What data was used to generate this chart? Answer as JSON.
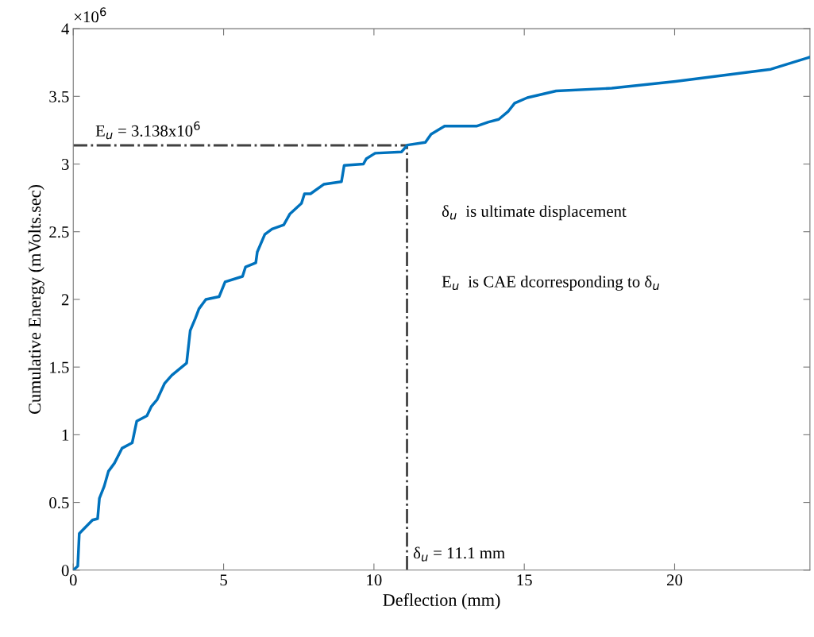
{
  "chart_data": {
    "type": "line",
    "xlabel": "Deflection (mm)",
    "ylabel": "Cumulative Energy (mVolts.sec)",
    "xlim": [
      0,
      24.5
    ],
    "xticks": [
      0,
      5,
      10,
      15,
      20
    ],
    "ylim": [
      0,
      4
    ],
    "yticks": [
      0,
      0.5,
      1,
      1.5,
      2,
      2.5,
      3,
      3.5,
      4
    ],
    "grid": false,
    "marker": "none",
    "line_style": "solid",
    "series": [
      {
        "color": "#0072bd",
        "x": [
          0,
          0.15,
          0.2,
          0.64,
          0.81,
          0.87,
          1.03,
          1.17,
          1.37,
          1.62,
          1.96,
          2.11,
          2.45,
          2.6,
          2.79,
          3.04,
          3.28,
          3.77,
          3.89,
          4.06,
          4.18,
          4.41,
          4.85,
          5.05,
          5.63,
          5.73,
          6.07,
          6.12,
          6.37,
          6.61,
          7.0,
          7.2,
          7.59,
          7.69,
          7.89,
          8.33,
          8.92,
          9.01,
          9.65,
          9.75,
          10.04,
          10.92,
          11.11,
          11.71,
          11.9,
          12.35,
          13.41,
          13.81,
          14.15,
          14.47,
          14.68,
          15.1,
          16.06,
          17.91,
          20.03,
          23.2,
          24.5
        ],
        "values": [
          0,
          0.03,
          0.27,
          0.37,
          0.38,
          0.53,
          0.62,
          0.73,
          0.79,
          0.9,
          0.94,
          1.1,
          1.14,
          1.21,
          1.26,
          1.38,
          1.44,
          1.53,
          1.77,
          1.86,
          1.93,
          2.0,
          2.02,
          2.13,
          2.17,
          2.24,
          2.27,
          2.35,
          2.48,
          2.52,
          2.55,
          2.63,
          2.71,
          2.78,
          2.78,
          2.85,
          2.87,
          2.99,
          3.0,
          3.04,
          3.08,
          3.09,
          3.14,
          3.16,
          3.22,
          3.28,
          3.28,
          3.31,
          3.33,
          3.39,
          3.45,
          3.49,
          3.54,
          3.56,
          3.61,
          3.7,
          3.79
        ]
      }
    ],
    "ref_lines": [
      {
        "axis": "y",
        "value": 3.138,
        "label": "E$_{u}$ = 3.138x10$^{6}$",
        "color": "#404040",
        "line_style": "dashed"
      },
      {
        "axis": "x",
        "value": 11.1,
        "label": "δ$_{u}$ = 11.1 mm",
        "color": "#404040",
        "line_style": "dashed"
      }
    ],
    "annotations": [
      "×10$^{6}$",
      "δ$_{u}$  is ultimate displacement",
      "E$_{u}$  is CAE dcorresponding to δ$_{u}$"
    ]
  }
}
